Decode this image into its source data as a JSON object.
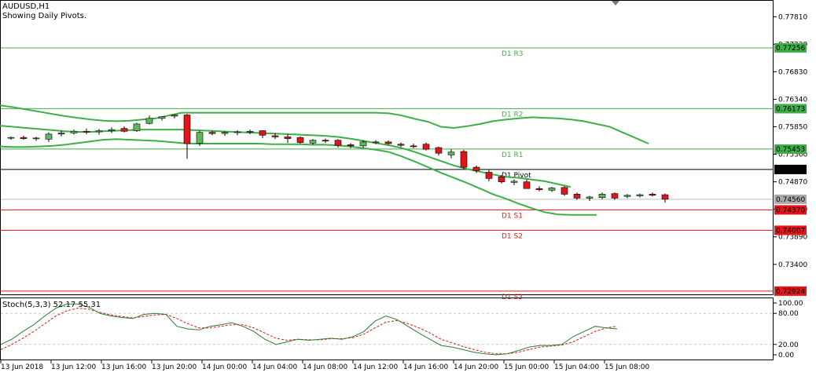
{
  "header": {
    "symbol": "AUDUSD,H1",
    "subtitle": "Showing Daily Pivots."
  },
  "colors": {
    "bull": "#5cb85c",
    "bear": "#e0161b",
    "resist": "#3fae49",
    "support": "#e0161b",
    "pivot": "#000000",
    "band": "#3fae49",
    "stoch_main": "#2e7d32",
    "stoch_signal": "#e0161b",
    "frame": "#000000",
    "grid": "#c8c8c8"
  },
  "chart_data": [
    {
      "type": "candlestick",
      "title": "AUDUSD,H1",
      "ylim": [
        0.7288,
        0.7808
      ],
      "price_ticks": [
        "0.77810",
        "0.77320",
        "0.76830",
        "0.76340",
        "0.75850",
        "0.75360",
        "0.74870",
        "0.74380",
        "0.73890",
        "0.73400"
      ],
      "price_tick_values": [
        0.7781,
        0.7732,
        0.7683,
        0.7634,
        0.7585,
        0.7536,
        0.7487,
        0.7438,
        0.7389,
        0.734
      ],
      "current_price": {
        "label": "0.74560",
        "value": 0.7456
      },
      "levels": [
        {
          "name": "D1 R3",
          "value": 0.77256,
          "label": "0.77256",
          "kind": "resist"
        },
        {
          "name": "D1 R2",
          "value": 0.76173,
          "label": "0.76173",
          "kind": "resist"
        },
        {
          "name": "D1 R1",
          "value": 0.75453,
          "label": "0.75453",
          "kind": "resist"
        },
        {
          "name": "D1 Pivot",
          "value": 0.7509,
          "label": "0.75090",
          "kind": "pivot"
        },
        {
          "name": "D1 S1",
          "value": 0.7437,
          "label": "0.74370",
          "kind": "support"
        },
        {
          "name": "D1 S2",
          "value": 0.74007,
          "label": "0.74007",
          "kind": "support"
        },
        {
          "name": "D1 S3",
          "value": 0.72924,
          "label": "0.72924",
          "kind": "support"
        }
      ],
      "x_time_labels": [
        "13 Jun 2018",
        "13 Jun 12:00",
        "13 Jun 16:00",
        "13 Jun 20:00",
        "14 Jun 00:00",
        "14 Jun 04:00",
        "14 Jun 08:00",
        "14 Jun 12:00",
        "14 Jun 16:00",
        "14 Jun 20:00",
        "15 Jun 00:00",
        "15 Jun 04:00",
        "15 Jun 08:00"
      ],
      "candles": [
        [
          0.7565,
          0.7568,
          0.7562,
          0.7566
        ],
        [
          0.7566,
          0.7569,
          0.7562,
          0.7564
        ],
        [
          0.7564,
          0.7567,
          0.756,
          0.7565
        ],
        [
          0.7563,
          0.7575,
          0.7558,
          0.7572
        ],
        [
          0.7572,
          0.7578,
          0.7568,
          0.7574
        ],
        [
          0.7574,
          0.758,
          0.7571,
          0.7577
        ],
        [
          0.7577,
          0.7582,
          0.7572,
          0.7576
        ],
        [
          0.7576,
          0.7581,
          0.7571,
          0.7578
        ],
        [
          0.7578,
          0.7584,
          0.7574,
          0.758
        ],
        [
          0.7582,
          0.7586,
          0.7575,
          0.7577
        ],
        [
          0.7578,
          0.7592,
          0.7576,
          0.759
        ],
        [
          0.7591,
          0.7605,
          0.7589,
          0.76
        ],
        [
          0.76,
          0.7604,
          0.7596,
          0.7603
        ],
        [
          0.7604,
          0.7607,
          0.76,
          0.7606
        ],
        [
          0.7606,
          0.7608,
          0.7528,
          0.7555
        ],
        [
          0.7556,
          0.7578,
          0.7551,
          0.7575
        ],
        [
          0.7575,
          0.7578,
          0.757,
          0.7573
        ],
        [
          0.7573,
          0.7577,
          0.7569,
          0.7575
        ],
        [
          0.7575,
          0.7579,
          0.757,
          0.7576
        ],
        [
          0.7576,
          0.758,
          0.7572,
          0.7577
        ],
        [
          0.7578,
          0.7579,
          0.7565,
          0.757
        ],
        [
          0.7569,
          0.7574,
          0.7563,
          0.7567
        ],
        [
          0.7567,
          0.7572,
          0.7556,
          0.7564
        ],
        [
          0.7566,
          0.7568,
          0.7555,
          0.7557
        ],
        [
          0.7556,
          0.7563,
          0.7553,
          0.7561
        ],
        [
          0.7561,
          0.7564,
          0.7556,
          0.756
        ],
        [
          0.7561,
          0.7563,
          0.7548,
          0.7552
        ],
        [
          0.7553,
          0.7556,
          0.7547,
          0.7551
        ],
        [
          0.7551,
          0.7561,
          0.7548,
          0.7558
        ],
        [
          0.7557,
          0.7561,
          0.7554,
          0.7558
        ],
        [
          0.7558,
          0.7561,
          0.7553,
          0.7555
        ],
        [
          0.7554,
          0.7557,
          0.7549,
          0.7552
        ],
        [
          0.7551,
          0.7555,
          0.7547,
          0.755
        ],
        [
          0.7554,
          0.7557,
          0.7543,
          0.7545
        ],
        [
          0.7548,
          0.755,
          0.7534,
          0.7538
        ],
        [
          0.7535,
          0.7545,
          0.7529,
          0.754
        ],
        [
          0.7541,
          0.7544,
          0.751,
          0.7513
        ],
        [
          0.7513,
          0.7516,
          0.7503,
          0.7507
        ],
        [
          0.7504,
          0.7508,
          0.7488,
          0.7493
        ],
        [
          0.7496,
          0.7499,
          0.7484,
          0.7487
        ],
        [
          0.7486,
          0.7491,
          0.7481,
          0.7488
        ],
        [
          0.7487,
          0.7491,
          0.748,
          0.7475
        ],
        [
          0.7475,
          0.7479,
          0.747,
          0.7473
        ],
        [
          0.7472,
          0.7478,
          0.7469,
          0.7476
        ],
        [
          0.7477,
          0.7479,
          0.7462,
          0.7465
        ],
        [
          0.7465,
          0.7468,
          0.7455,
          0.7458
        ],
        [
          0.7458,
          0.7462,
          0.7453,
          0.746
        ],
        [
          0.7459,
          0.7468,
          0.7456,
          0.7465
        ],
        [
          0.7466,
          0.7468,
          0.7455,
          0.7458
        ],
        [
          0.7461,
          0.7465,
          0.7458,
          0.7463
        ],
        [
          0.7462,
          0.7466,
          0.7459,
          0.7464
        ],
        [
          0.7465,
          0.7468,
          0.7461,
          0.7463
        ],
        [
          0.7464,
          0.7466,
          0.745,
          0.7456
        ]
      ],
      "bands_upper": [
        0.7623,
        0.762,
        0.7616,
        0.7612,
        0.7608,
        0.7604,
        0.7601,
        0.7598,
        0.7596,
        0.7595,
        0.7596,
        0.7598,
        0.76,
        0.7605,
        0.761,
        0.761,
        0.761,
        0.761,
        0.761,
        0.761,
        0.761,
        0.761,
        0.761,
        0.761,
        0.761,
        0.761,
        0.761,
        0.761,
        0.761,
        0.761,
        0.7609,
        0.7605,
        0.7599,
        0.7594,
        0.7585,
        0.7583,
        0.7586,
        0.759,
        0.7595,
        0.7598,
        0.76,
        0.7602,
        0.7601,
        0.76,
        0.7598,
        0.7595,
        0.759,
        0.7585,
        0.7575,
        0.7565,
        0.7555
      ],
      "bands_middle": [
        0.7587,
        0.7585,
        0.7583,
        0.7581,
        0.7579,
        0.7577,
        0.7576,
        0.7576,
        0.7577,
        0.7578,
        0.7579,
        0.758,
        0.758,
        0.758,
        0.758,
        0.7579,
        0.7578,
        0.7577,
        0.7576,
        0.7575,
        0.7574,
        0.7573,
        0.7572,
        0.7571,
        0.757,
        0.7569,
        0.7567,
        0.7564,
        0.756,
        0.7556,
        0.7552,
        0.7547,
        0.754,
        0.7532,
        0.7524,
        0.7516,
        0.751,
        0.7505,
        0.75,
        0.7496,
        0.7494,
        0.7491,
        0.7488,
        0.7483,
        0.7478
      ],
      "bands_lower": [
        0.755,
        0.7549,
        0.7549,
        0.755,
        0.7551,
        0.7553,
        0.7556,
        0.7559,
        0.7562,
        0.7563,
        0.7562,
        0.7561,
        0.756,
        0.7558,
        0.7556,
        0.7555,
        0.7555,
        0.7555,
        0.7555,
        0.7555,
        0.7555,
        0.7554,
        0.7554,
        0.7554,
        0.7553,
        0.7553,
        0.7552,
        0.755,
        0.7547,
        0.7544,
        0.754,
        0.7532,
        0.7523,
        0.7513,
        0.7503,
        0.7494,
        0.7485,
        0.7475,
        0.7465,
        0.7457,
        0.7448,
        0.744,
        0.7433,
        0.7429,
        0.7428,
        0.7428,
        0.7428
      ]
    },
    {
      "type": "line",
      "title": "Stoch(5,3,3) 52.17 55.31",
      "ylim": [
        0,
        100
      ],
      "y_tick_labels": [
        "100.00",
        "80.00",
        "20.00",
        "0.00"
      ],
      "y_tick_values": [
        100,
        80,
        20,
        0
      ],
      "levels": [
        80,
        20
      ],
      "series": [
        {
          "values": [
            20,
            30,
            45,
            58,
            75,
            90,
            98,
            98,
            92,
            80,
            75,
            72,
            70,
            78,
            80,
            78,
            55,
            50,
            48,
            55,
            58,
            62,
            55,
            45,
            30,
            20,
            25,
            30,
            28,
            30,
            32,
            30,
            35,
            45,
            65,
            75,
            68,
            55,
            42,
            30,
            18,
            15,
            10,
            5,
            2,
            0,
            2,
            8,
            15,
            18,
            18,
            20,
            35,
            45,
            55,
            52,
            50
          ]
        },
        {
          "values": [
            10,
            20,
            32,
            45,
            60,
            75,
            85,
            90,
            88,
            82,
            77,
            74,
            71,
            74,
            77,
            78,
            70,
            60,
            52,
            52,
            55,
            58,
            58,
            52,
            42,
            32,
            28,
            30,
            29,
            29,
            31,
            31,
            33,
            40,
            52,
            63,
            66,
            60,
            52,
            42,
            30,
            23,
            16,
            10,
            5,
            2,
            2,
            5,
            10,
            15,
            17,
            19,
            25,
            35,
            45,
            52,
            55
          ]
        }
      ]
    }
  ]
}
